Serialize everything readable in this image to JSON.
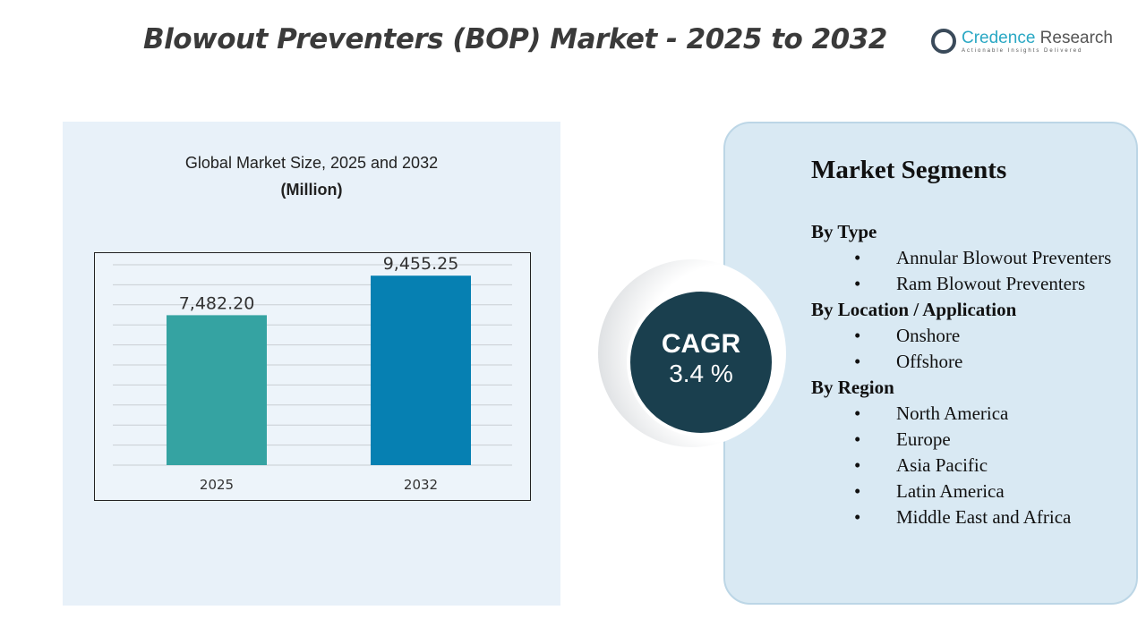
{
  "title": "Blowout Preventers (BOP) Market - 2025 to 2032",
  "logo": {
    "name_a": "Credence",
    "name_b": " Research",
    "tagline": "Actionable Insights Delivered"
  },
  "chart_data": {
    "type": "bar",
    "title": "Global Market Size, 2025 and 2032",
    "unit": "(Million)",
    "categories": [
      "2025",
      "2032"
    ],
    "values": [
      7482.2,
      9455.25
    ],
    "labels": [
      "7,482.20",
      "9,455.25"
    ],
    "colors": [
      "#35a3a2",
      "#0680b2"
    ],
    "ylim": [
      0,
      10000
    ],
    "grid": true
  },
  "cagr": {
    "label": "CAGR",
    "value": "3.4 %"
  },
  "segments": {
    "title": "Market Segments",
    "groups": [
      {
        "label": "By Type",
        "items": [
          "Annular Blowout Preventers",
          "Ram Blowout Preventers"
        ]
      },
      {
        "label": "By Location / Application",
        "items": [
          "Onshore",
          "Offshore"
        ]
      },
      {
        "label": "By Region",
        "items": [
          "North America",
          "Europe",
          "Asia Pacific",
          "Latin America",
          "Middle East and Africa"
        ]
      }
    ]
  }
}
